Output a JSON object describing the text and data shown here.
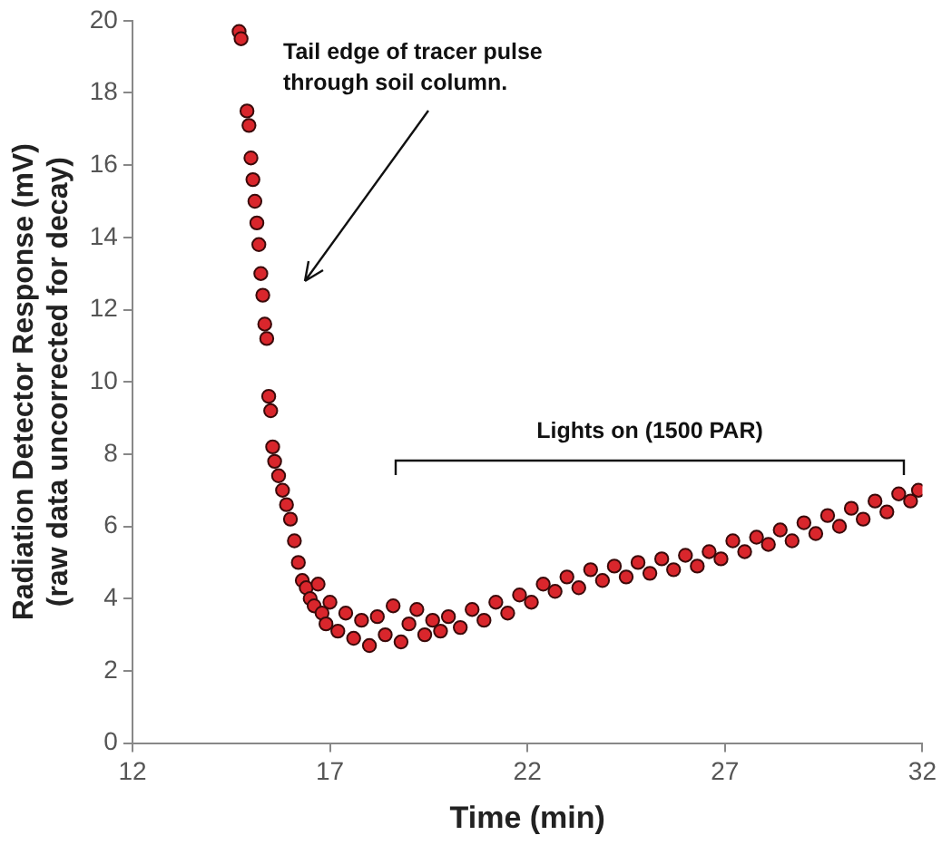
{
  "chart_data": {
    "type": "scatter",
    "xlabel": "Time (min)",
    "ylabel": "Radiation Detector Response (mV)\n(raw data uncorrected for decay)",
    "xlim": [
      12,
      32
    ],
    "xticks": [
      12,
      17,
      22,
      27,
      32
    ],
    "ylim": [
      0,
      20
    ],
    "yticks": [
      0,
      2,
      4,
      6,
      8,
      10,
      12,
      14,
      16,
      18,
      20
    ],
    "grid": false,
    "legend": false,
    "marker": "circle",
    "series": [
      {
        "color": "#d9262c",
        "x": [
          14.7,
          14.75,
          14.9,
          14.95,
          15.0,
          15.05,
          15.1,
          15.15,
          15.2,
          15.25,
          15.3,
          15.35,
          15.4,
          15.45,
          15.5,
          15.55,
          15.6,
          15.7,
          15.8,
          15.9,
          16.0,
          16.1,
          16.2,
          16.3,
          16.4,
          16.5,
          16.6,
          16.7,
          16.8,
          16.9,
          17.0,
          17.2,
          17.4,
          17.6,
          17.8,
          18.0,
          18.2,
          18.4,
          18.6,
          18.8,
          19.0,
          19.2,
          19.4,
          19.6,
          19.8,
          20.0,
          20.3,
          20.6,
          20.9,
          21.2,
          21.5,
          21.8,
          22.1,
          22.4,
          22.7,
          23.0,
          23.3,
          23.6,
          23.9,
          24.2,
          24.5,
          24.8,
          25.1,
          25.4,
          25.7,
          26.0,
          26.3,
          26.6,
          26.9,
          27.2,
          27.5,
          27.8,
          28.1,
          28.4,
          28.7,
          29.0,
          29.3,
          29.6,
          29.9,
          30.2,
          30.5,
          30.8,
          31.1,
          31.4,
          31.7,
          31.9
        ],
        "values": [
          19.7,
          19.5,
          17.5,
          17.1,
          16.2,
          15.6,
          15.0,
          14.4,
          13.8,
          13.0,
          12.4,
          11.6,
          11.2,
          9.6,
          9.2,
          8.2,
          7.8,
          7.4,
          7.0,
          6.6,
          6.2,
          5.6,
          5.0,
          4.5,
          4.3,
          4.0,
          3.8,
          4.4,
          3.6,
          3.3,
          3.9,
          3.1,
          3.6,
          2.9,
          3.4,
          2.7,
          3.5,
          3.0,
          3.8,
          2.8,
          3.3,
          3.7,
          3.0,
          3.4,
          3.1,
          3.5,
          3.2,
          3.7,
          3.4,
          3.9,
          3.6,
          4.1,
          3.9,
          4.4,
          4.2,
          4.6,
          4.3,
          4.8,
          4.5,
          4.9,
          4.6,
          5.0,
          4.7,
          5.1,
          4.8,
          5.2,
          4.9,
          5.3,
          5.1,
          5.6,
          5.3,
          5.7,
          5.5,
          5.9,
          5.6,
          6.1,
          5.8,
          6.3,
          6.0,
          6.5,
          6.2,
          6.7,
          6.4,
          6.9,
          6.7,
          7.0
        ]
      }
    ],
    "annotations": [
      "Tail edge of tracer pulse\nthrough soil column.",
      "Lights on (1500 PAR)"
    ]
  }
}
